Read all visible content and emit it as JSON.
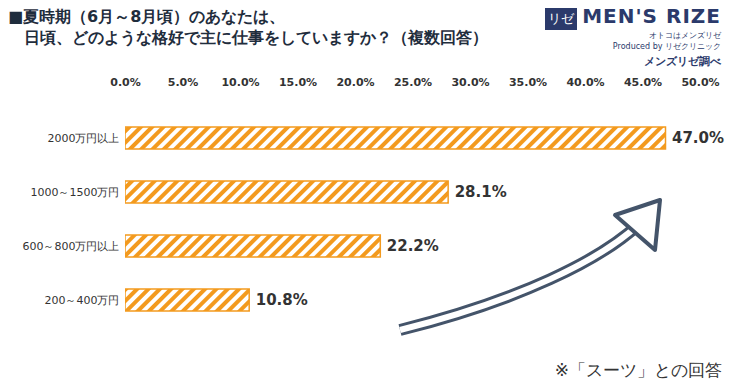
{
  "chart_data": {
    "type": "bar",
    "orientation": "horizontal",
    "title": "■夏時期（6月～8月頃）のあなたは、\n　日頃、どのような格好で主に仕事をしていますか？（複数回答）",
    "categories": [
      "2000万円以上",
      "1000～1500万円",
      "600～800万円以上",
      "200～400万円"
    ],
    "values": [
      47.0,
      28.1,
      22.2,
      10.8
    ],
    "value_labels": [
      "47.0%",
      "28.1%",
      "22.2%",
      "10.8%"
    ],
    "data_labels": true,
    "color": "#f39a1e",
    "xlim": [
      0,
      50
    ],
    "xticks": [
      {
        "value": 0,
        "label": "0.0%"
      },
      {
        "value": 5,
        "label": "5.0%"
      },
      {
        "value": 10,
        "label": "10.0%"
      },
      {
        "value": 15,
        "label": "15.0%"
      },
      {
        "value": 20,
        "label": "20.0%"
      },
      {
        "value": 25,
        "label": "25.0%"
      },
      {
        "value": 30,
        "label": "30.0%"
      },
      {
        "value": 35,
        "label": "35.0%"
      },
      {
        "value": 40,
        "label": "40.0%"
      },
      {
        "value": 45,
        "label": "45.0%"
      },
      {
        "value": 50,
        "label": "50.0%"
      }
    ],
    "grid": false,
    "annotations": [
      "※「スーツ」との回答"
    ],
    "logo": [
      "リゼ",
      "MEN'S RIZE",
      "オトコはメンズリゼ",
      "Produced by リゼクリニック"
    ],
    "source": "メンズリゼ調べ"
  }
}
